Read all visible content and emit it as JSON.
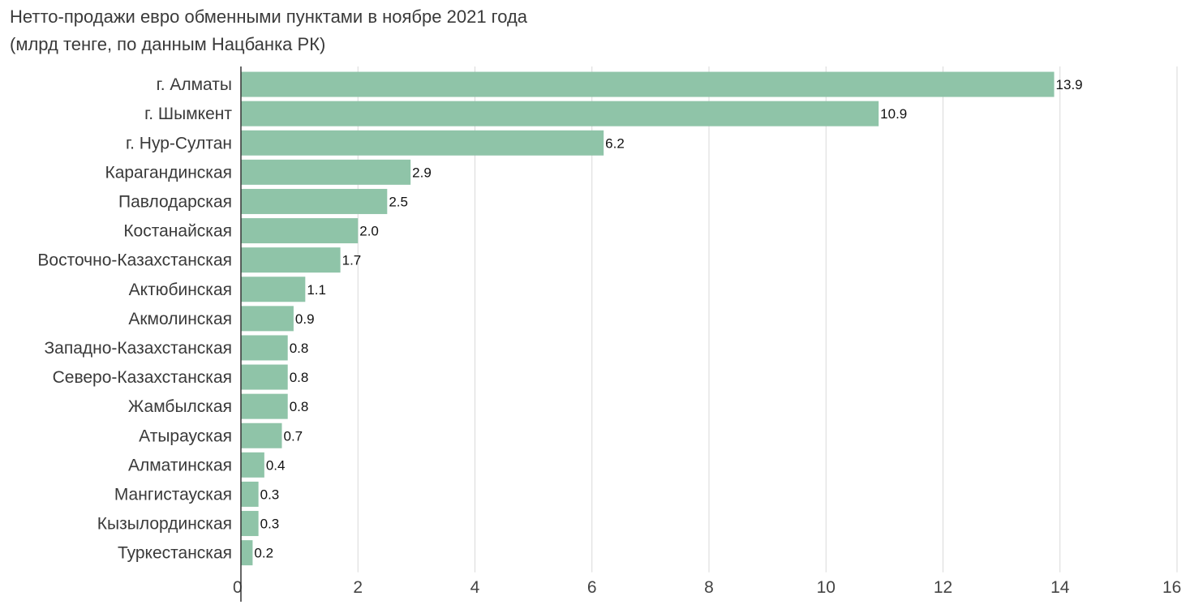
{
  "chart_data": {
    "type": "bar",
    "orientation": "horizontal",
    "title": "Нетто-продажи евро обменными пунктами в ноябре 2021 года",
    "subtitle": "(млрд тенге, по данным Нацбанка РК)",
    "categories": [
      "г. Алматы",
      "г. Шымкент",
      "г. Нур-Султан",
      "Карагандинская",
      "Павлодарская",
      "Костанайская",
      "Восточно-Казахстанская",
      "Актюбинская",
      "Акмолинская",
      "Западно-Казахстанская",
      "Северо-Казахстанская",
      "Жамбылская",
      "Атырауская",
      "Алматинская",
      "Мангистауская",
      "Кызылординская",
      "Туркестанская"
    ],
    "values": [
      13.9,
      10.9,
      6.2,
      2.9,
      2.5,
      2.0,
      1.7,
      1.1,
      0.9,
      0.8,
      0.8,
      0.8,
      0.7,
      0.4,
      0.3,
      0.3,
      0.2
    ],
    "value_labels": [
      "13.9",
      "10.9",
      "6.2",
      "2.9",
      "2.5",
      "2.0",
      "1.7",
      "1.1",
      "0.9",
      "0.8",
      "0.8",
      "0.8",
      "0.7",
      "0.4",
      "0.3",
      "0.3",
      "0.2"
    ],
    "xlim": [
      0,
      16
    ],
    "xticks": [
      "0",
      "2",
      "4",
      "6",
      "8",
      "10",
      "12",
      "14",
      "16"
    ],
    "grid": true,
    "bar_color": "#8fc4a8"
  }
}
